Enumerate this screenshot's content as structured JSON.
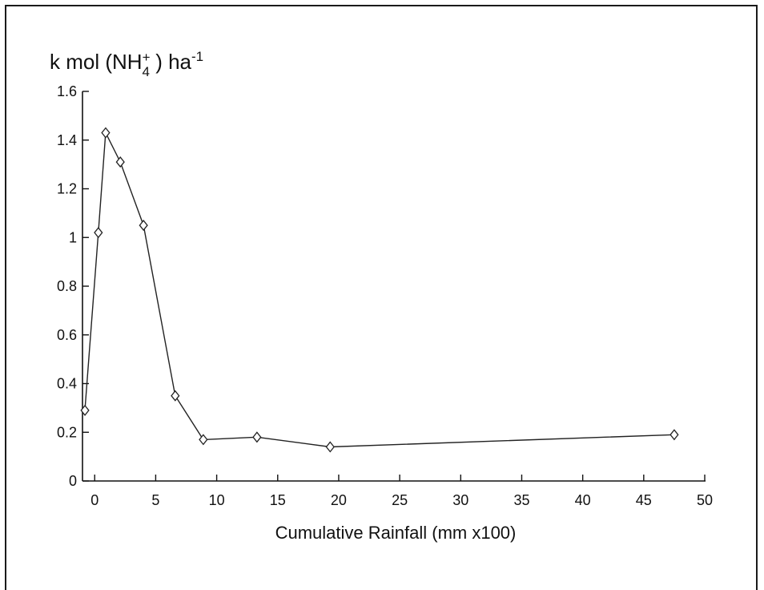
{
  "chart_data": {
    "type": "line",
    "title": "",
    "xlabel": "Cumulative Rainfall (mm x100)",
    "ylabel": {
      "prefix": "k mol (NH",
      "ion_sup": "+",
      "ion_sub": "4",
      "suffix": " ) ha",
      "unit_sup": "-1"
    },
    "xlim": [
      -1,
      50
    ],
    "ylim": [
      0,
      1.6
    ],
    "x_ticks": [
      0,
      5,
      10,
      15,
      20,
      25,
      30,
      35,
      40,
      45,
      50
    ],
    "y_ticks": [
      0,
      0.2,
      0.4,
      0.6,
      0.8,
      1,
      1.2,
      1.4,
      1.6
    ],
    "y_tick_labels": [
      "0",
      "0.2",
      "0.4",
      "0.6",
      "0.8",
      "1",
      "1.2",
      "1.4",
      "1.6"
    ],
    "grid": false,
    "marker": "diamond",
    "series": [
      {
        "x": [
          -0.8,
          0.3,
          0.9,
          2.1,
          4.0,
          6.6,
          8.9,
          13.3,
          19.3,
          47.5
        ],
        "y": [
          0.29,
          1.02,
          1.43,
          1.31,
          1.05,
          0.35,
          0.17,
          0.18,
          0.14,
          0.19
        ]
      }
    ]
  }
}
